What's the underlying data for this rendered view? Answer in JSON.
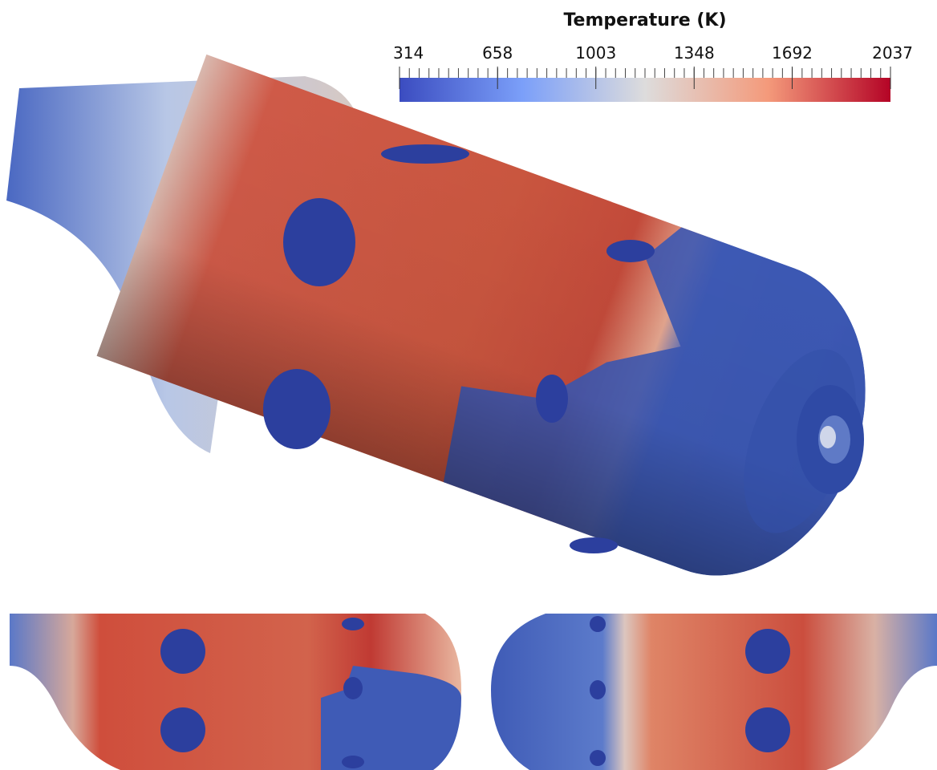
{
  "colorbar": {
    "title": "Temperature (K)",
    "range": [
      314,
      2037
    ],
    "ticks": [
      314,
      658,
      1003,
      1348,
      1692,
      2037
    ]
  }
}
